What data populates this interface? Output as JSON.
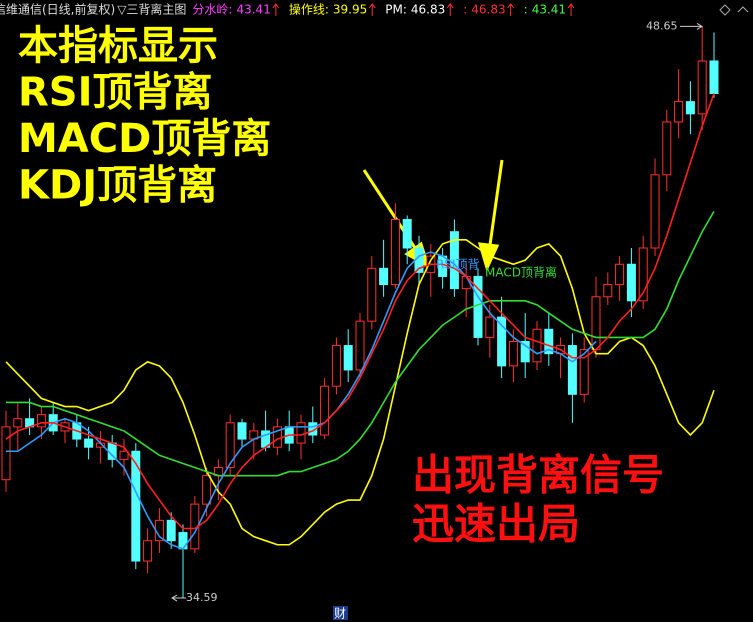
{
  "chart_data": {
    "type": "candlestick",
    "header": {
      "stock": "信维通信(日线,前复权)",
      "indicator": "▽三背离主图",
      "items": [
        {
          "label": "分水岭:",
          "value": 43.41,
          "color": "#ff40ff"
        },
        {
          "label": "操作线:",
          "value": 39.95,
          "color": "#ffff00"
        },
        {
          "label": "PM:",
          "value": 46.83,
          "color": "#ffffff"
        },
        {
          "label": ":",
          "value": 46.83,
          "color": "#ff3030"
        },
        {
          "label": ":",
          "value": 43.41,
          "color": "#40ff40"
        }
      ]
    },
    "notes_left": [
      "本指标显示",
      "RSI顶背离",
      "MACD顶背离",
      "KDJ顶背离"
    ],
    "notes_right": [
      "出现背离信号",
      "迅速出局"
    ],
    "annotations": [
      {
        "text": "RSI顶背",
        "color": "#3399ff"
      },
      {
        "text": "MACD顶背离",
        "color": "#33dd33"
      }
    ],
    "high": 48.65,
    "low": 34.59,
    "footer": "财",
    "ylim": [
      34.0,
      49.3
    ],
    "up_color": "#ff3030",
    "down_color": "#54ffff",
    "candles": [
      [
        37.5,
        39.2,
        37.2,
        38.8
      ],
      [
        38.8,
        39.4,
        38.2,
        39.0
      ],
      [
        39.0,
        39.5,
        38.6,
        38.8
      ],
      [
        38.8,
        39.3,
        38.5,
        39.1
      ],
      [
        39.1,
        39.4,
        38.6,
        38.7
      ],
      [
        38.7,
        39.0,
        38.4,
        38.9
      ],
      [
        38.9,
        39.1,
        38.3,
        38.5
      ],
      [
        38.5,
        38.8,
        38.0,
        38.3
      ],
      [
        38.3,
        38.7,
        37.9,
        38.4
      ],
      [
        38.4,
        38.6,
        37.8,
        38.0
      ],
      [
        38.0,
        38.5,
        37.6,
        38.2
      ],
      [
        38.2,
        38.4,
        35.3,
        35.5
      ],
      [
        35.5,
        36.3,
        35.2,
        36.0
      ],
      [
        36.0,
        36.8,
        35.7,
        36.5
      ],
      [
        36.5,
        36.7,
        35.8,
        36.0
      ],
      [
        36.2,
        36.4,
        34.59,
        35.8
      ],
      [
        35.8,
        37.1,
        35.7,
        36.9
      ],
      [
        36.9,
        37.8,
        36.6,
        37.6
      ],
      [
        37.6,
        38.0,
        37.0,
        37.8
      ],
      [
        37.8,
        39.1,
        37.6,
        38.9
      ],
      [
        38.9,
        39.0,
        38.3,
        38.5
      ],
      [
        38.5,
        38.9,
        38.0,
        38.7
      ],
      [
        38.7,
        39.2,
        38.2,
        38.3
      ],
      [
        38.3,
        39.0,
        38.1,
        38.8
      ],
      [
        38.8,
        39.2,
        38.2,
        38.4
      ],
      [
        38.4,
        39.1,
        38.0,
        38.9
      ],
      [
        38.9,
        39.3,
        38.4,
        38.6
      ],
      [
        38.6,
        40.0,
        38.5,
        39.8
      ],
      [
        39.8,
        41.0,
        39.6,
        40.8
      ],
      [
        40.8,
        41.2,
        39.9,
        40.2
      ],
      [
        40.2,
        41.6,
        40.0,
        41.4
      ],
      [
        41.4,
        43.0,
        41.2,
        42.7
      ],
      [
        42.7,
        43.4,
        42.0,
        42.3
      ],
      [
        42.3,
        44.3,
        42.2,
        43.9
      ],
      [
        43.9,
        44.0,
        42.8,
        43.2
      ],
      [
        43.2,
        43.5,
        42.3,
        42.6
      ],
      [
        42.6,
        43.3,
        42.0,
        43.0
      ],
      [
        43.0,
        43.2,
        42.2,
        42.5
      ],
      [
        43.6,
        43.9,
        42.0,
        42.2
      ],
      [
        42.2,
        42.8,
        41.5,
        42.5
      ],
      [
        42.5,
        42.7,
        40.8,
        41.0
      ],
      [
        41.0,
        41.8,
        40.5,
        41.5
      ],
      [
        41.5,
        42.0,
        40.0,
        40.3
      ],
      [
        40.3,
        41.2,
        39.9,
        40.9
      ],
      [
        40.9,
        41.6,
        40.0,
        40.4
      ],
      [
        40.4,
        41.4,
        40.2,
        41.2
      ],
      [
        41.2,
        41.6,
        40.3,
        40.6
      ],
      [
        40.6,
        41.0,
        40.0,
        40.8
      ],
      [
        40.8,
        41.1,
        38.9,
        39.6
      ],
      [
        39.6,
        41.0,
        39.4,
        40.7
      ],
      [
        40.7,
        42.5,
        40.5,
        42.0
      ],
      [
        42.0,
        42.6,
        41.8,
        42.3
      ],
      [
        42.3,
        43.0,
        41.9,
        42.8
      ],
      [
        42.8,
        43.2,
        41.5,
        41.9
      ],
      [
        41.9,
        43.5,
        41.7,
        43.2
      ],
      [
        43.2,
        45.4,
        43.0,
        45.0
      ],
      [
        45.0,
        46.6,
        44.6,
        46.3
      ],
      [
        46.3,
        47.6,
        45.9,
        46.8
      ],
      [
        46.8,
        47.3,
        46.0,
        46.5
      ],
      [
        46.5,
        48.65,
        46.1,
        47.8
      ],
      [
        47.8,
        48.5,
        46.9,
        47.0
      ]
    ],
    "series": [
      {
        "color": "#ffff00",
        "values": [
          40.4,
          40.1,
          39.8,
          39.5,
          39.4,
          39.3,
          39.3,
          39.2,
          39.3,
          39.4,
          39.7,
          40.2,
          40.4,
          40.3,
          40.0,
          39.4,
          38.6,
          37.7,
          37.2,
          36.9,
          36.3,
          36.1,
          36.0,
          35.9,
          35.9,
          36.1,
          36.4,
          36.7,
          36.9,
          37.0,
          37.0,
          37.6,
          38.5,
          39.8,
          41.1,
          42.3,
          42.9,
          43.3,
          43.4,
          43.4,
          43.2,
          43.0,
          42.9,
          42.8,
          42.9,
          43.2,
          43.3,
          43.0,
          42.2,
          41.1,
          40.6,
          40.6,
          40.9,
          41.0,
          40.8,
          40.3,
          39.6,
          38.9,
          38.6,
          38.9,
          39.7
        ]
      },
      {
        "color": "#33dd33",
        "values": [
          39.4,
          39.4,
          39.4,
          39.3,
          39.3,
          39.2,
          39.1,
          39.0,
          38.9,
          38.8,
          38.7,
          38.5,
          38.3,
          38.1,
          38.0,
          37.9,
          37.8,
          37.7,
          37.6,
          37.6,
          37.6,
          37.6,
          37.6,
          37.6,
          37.7,
          37.7,
          37.8,
          37.9,
          38.0,
          38.2,
          38.5,
          38.9,
          39.4,
          39.9,
          40.3,
          40.7,
          41.0,
          41.3,
          41.5,
          41.7,
          41.8,
          41.9,
          41.9,
          41.9,
          41.9,
          41.8,
          41.6,
          41.4,
          41.2,
          41.1,
          41.0,
          41.0,
          41.0,
          41.0,
          41.0,
          41.2,
          41.7,
          42.4,
          43.0,
          43.6,
          44.1
        ]
      },
      {
        "color": "#3399ff",
        "values": [
          38.2,
          38.2,
          38.4,
          38.6,
          38.9,
          39.0,
          38.9,
          38.7,
          38.4,
          38.1,
          37.8,
          37.2,
          36.6,
          36.1,
          35.9,
          35.8,
          36.2,
          36.8,
          37.4,
          37.9,
          38.3,
          38.5,
          38.6,
          38.7,
          38.8,
          38.8,
          38.8,
          38.9,
          39.2,
          39.6,
          40.1,
          40.7,
          41.4,
          42.1,
          42.7,
          43.0,
          43.1,
          43.0,
          42.8,
          42.5,
          42.0,
          41.6,
          41.3,
          41.0,
          40.8,
          40.6,
          40.7,
          40.6,
          40.4,
          40.6,
          40.9,
          null,
          null,
          null,
          null,
          null,
          null,
          null,
          null,
          null,
          null
        ]
      },
      {
        "color": "#ff2020",
        "values": [
          38.5,
          38.7,
          38.8,
          38.9,
          38.9,
          38.8,
          38.7,
          38.6,
          38.5,
          38.4,
          38.3,
          37.9,
          37.4,
          37.0,
          36.6,
          36.3,
          36.3,
          36.5,
          36.9,
          37.4,
          37.8,
          38.1,
          38.3,
          38.5,
          38.6,
          38.6,
          38.7,
          38.9,
          39.2,
          39.5,
          40.0,
          40.6,
          41.2,
          41.9,
          42.4,
          42.7,
          42.8,
          42.8,
          42.7,
          42.5,
          42.2,
          41.9,
          41.6,
          41.3,
          41.0,
          40.9,
          40.8,
          40.7,
          40.5,
          40.5,
          40.7,
          41.0,
          41.4,
          41.7,
          42.1,
          42.7,
          43.5,
          44.4,
          45.3,
          46.2,
          47.0
        ]
      }
    ]
  }
}
